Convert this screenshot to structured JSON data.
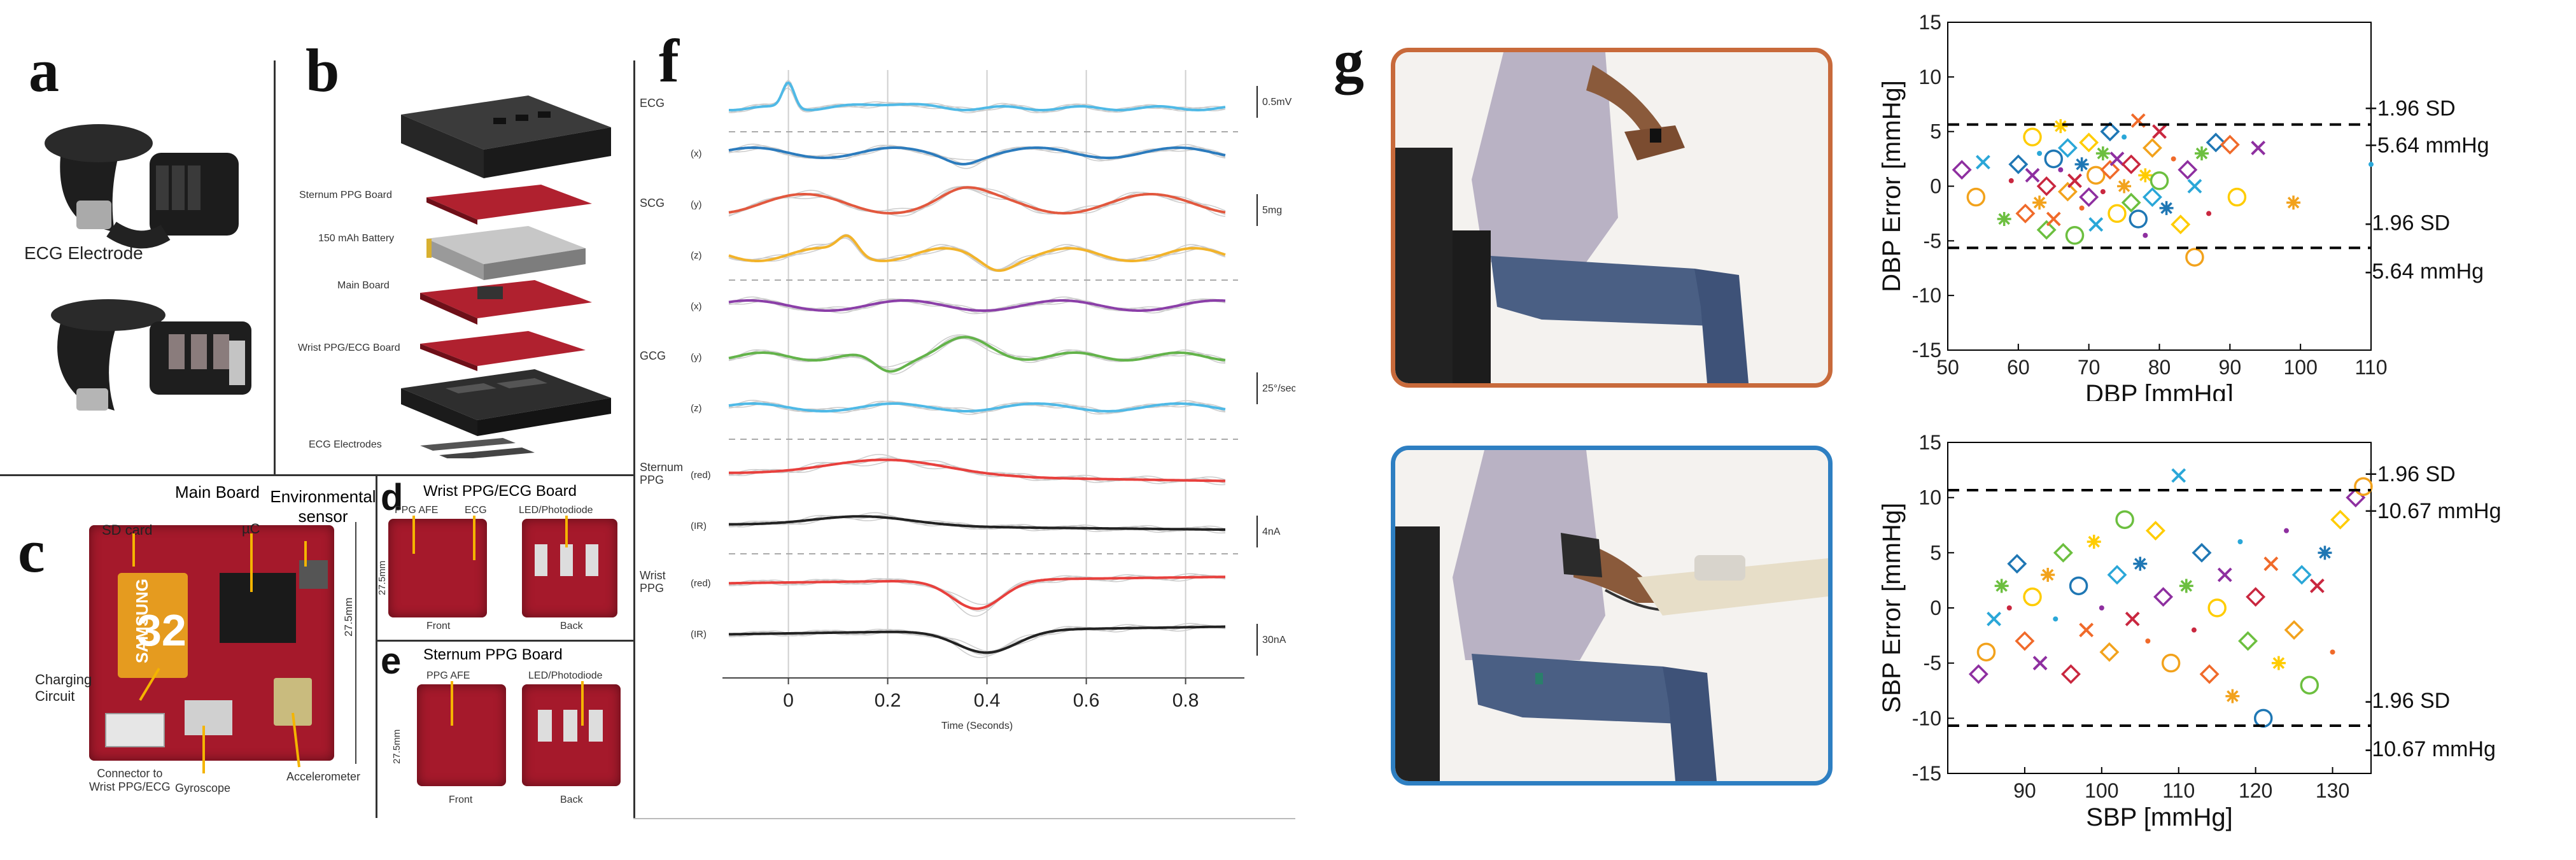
{
  "labels": {
    "a": "a",
    "b": "b",
    "c": "c",
    "d": "d",
    "e": "e",
    "f": "f",
    "g": "g"
  },
  "panel_a": {
    "electrode": "ECG Electrode"
  },
  "panel_b": {
    "parts": [
      "Sternum PPG Board",
      "150 mAh Battery",
      "Main Board",
      "Wrist PPG/ECG Board",
      "ECG Electrodes"
    ]
  },
  "panel_c": {
    "title": "Main Board",
    "env": "Environmental\nsensor",
    "sd": "SD card",
    "uc": "µC",
    "charging": "Charging\nCircuit",
    "connector": "Connector to\nWrist PPG/ECG",
    "gyro": "Gyroscope",
    "accel": "Accelerometer",
    "dim": "27.5mm",
    "sd_brand": "SAMSUNG",
    "sd_size": "32"
  },
  "panel_d": {
    "title": "Wrist PPG/ECG Board",
    "afe": "PPG AFE",
    "ecg": "ECG",
    "led": "LED/Photodiode",
    "front": "Front",
    "back": "Back",
    "dim": "27.5mm"
  },
  "panel_e": {
    "title": "Sternum PPG Board",
    "afe": "PPG AFE",
    "led": "LED/Photodiode",
    "front": "Front",
    "back": "Back",
    "dim": "27.5mm"
  },
  "panel_f": {
    "row_labels": [
      {
        "group": "ECG",
        "axis": ""
      },
      {
        "group": "",
        "axis": "(x)"
      },
      {
        "group": "SCG",
        "axis": "(y)"
      },
      {
        "group": "",
        "axis": "(z)"
      },
      {
        "group": "",
        "axis": "(x)"
      },
      {
        "group": "GCG",
        "axis": "(y)"
      },
      {
        "group": "",
        "axis": "(z)"
      },
      {
        "group": "Sternum\nPPG",
        "axis": "(red)"
      },
      {
        "group": "",
        "axis": "(IR)"
      },
      {
        "group": "Wrist\nPPG",
        "axis": "(red)"
      },
      {
        "group": "",
        "axis": "(IR)"
      }
    ],
    "scale_bars": [
      "0.5mV",
      "5mg",
      "25°/sec",
      "4nA",
      "30nA"
    ],
    "x_ticks": [
      "0",
      "0.2",
      "0.4",
      "0.6",
      "0.8"
    ],
    "xlabel": "Time (Seconds)"
  },
  "chart_data": [
    {
      "type": "scatter",
      "title": "",
      "xlabel": "DBP [mmHg]",
      "ylabel": "DBP Error [mmHg]",
      "xlim": [
        50,
        110
      ],
      "ylim": [
        -15,
        15
      ],
      "x_ticks": [
        "50",
        "60",
        "70",
        "80",
        "90",
        "100",
        "110"
      ],
      "y_ticks": [
        "-15",
        "-10",
        "-5",
        "0",
        "5",
        "10",
        "15"
      ],
      "reference_lines": [
        {
          "value": 5.64,
          "label_top": "+1.96 SD",
          "label_bottom": "+5.64 mmHg"
        },
        {
          "value": -5.64,
          "label_top": "-1.96 SD",
          "label_bottom": "-5.64 mmHg"
        }
      ],
      "grid": false,
      "points": [
        [
          52,
          1.5
        ],
        [
          54,
          -1
        ],
        [
          55,
          2.2
        ],
        [
          58,
          -3
        ],
        [
          59,
          0.5
        ],
        [
          60,
          2
        ],
        [
          61,
          -2.5
        ],
        [
          62,
          4.5
        ],
        [
          62,
          1
        ],
        [
          63,
          -1.5
        ],
        [
          63,
          3
        ],
        [
          64,
          -4
        ],
        [
          64,
          0
        ],
        [
          65,
          2.5
        ],
        [
          65,
          -3
        ],
        [
          66,
          5.5
        ],
        [
          66,
          1.5
        ],
        [
          67,
          -0.5
        ],
        [
          67,
          3.5
        ],
        [
          68,
          -4.5
        ],
        [
          68,
          0.5
        ],
        [
          69,
          2
        ],
        [
          69,
          -2
        ],
        [
          70,
          4
        ],
        [
          70,
          -1
        ],
        [
          71,
          1
        ],
        [
          71,
          -3.5
        ],
        [
          72,
          3
        ],
        [
          72,
          -0.5
        ],
        [
          73,
          5
        ],
        [
          73,
          1.5
        ],
        [
          74,
          -2.5
        ],
        [
          74,
          2.5
        ],
        [
          75,
          0
        ],
        [
          75,
          4.5
        ],
        [
          76,
          -1.5
        ],
        [
          76,
          2
        ],
        [
          77,
          -3
        ],
        [
          77,
          6
        ],
        [
          78,
          1
        ],
        [
          78,
          -4.5
        ],
        [
          79,
          3.5
        ],
        [
          79,
          -1
        ],
        [
          80,
          0.5
        ],
        [
          80,
          5
        ],
        [
          81,
          -2
        ],
        [
          82,
          2.5
        ],
        [
          83,
          -3.5
        ],
        [
          84,
          1.5
        ],
        [
          85,
          -6.5
        ],
        [
          85,
          0
        ],
        [
          86,
          3
        ],
        [
          87,
          -2.5
        ],
        [
          88,
          4
        ],
        [
          90,
          3.8
        ],
        [
          91,
          -1
        ],
        [
          94,
          3.5
        ],
        [
          99,
          -1.5
        ],
        [
          110,
          2
        ]
      ]
    },
    {
      "type": "scatter",
      "title": "",
      "xlabel": "SBP [mmHg]",
      "ylabel": "SBP Error [mmHg]",
      "xlim": [
        80,
        135
      ],
      "ylim": [
        -15,
        15
      ],
      "x_ticks": [
        "90",
        "100",
        "110",
        "120",
        "130"
      ],
      "y_ticks": [
        "-15",
        "-10",
        "-5",
        "0",
        "5",
        "10",
        "15"
      ],
      "reference_lines": [
        {
          "value": 10.67,
          "label_top": "+1.96 SD",
          "label_bottom": "+10.67 mmHg"
        },
        {
          "value": -10.67,
          "label_top": "-1.96 SD",
          "label_bottom": "-10.67 mmHg"
        }
      ],
      "grid": false,
      "points": [
        [
          84,
          -6
        ],
        [
          85,
          -4
        ],
        [
          86,
          -1
        ],
        [
          87,
          2
        ],
        [
          88,
          0
        ],
        [
          89,
          4
        ],
        [
          90,
          -3
        ],
        [
          91,
          1
        ],
        [
          92,
          -5
        ],
        [
          93,
          3
        ],
        [
          94,
          -1
        ],
        [
          95,
          5
        ],
        [
          96,
          -6
        ],
        [
          97,
          2
        ],
        [
          98,
          -2
        ],
        [
          99,
          6
        ],
        [
          100,
          0
        ],
        [
          101,
          -4
        ],
        [
          102,
          3
        ],
        [
          103,
          8
        ],
        [
          104,
          -1
        ],
        [
          105,
          4
        ],
        [
          106,
          -3
        ],
        [
          107,
          7
        ],
        [
          108,
          1
        ],
        [
          109,
          -5
        ],
        [
          110,
          12
        ],
        [
          111,
          2
        ],
        [
          112,
          -2
        ],
        [
          113,
          5
        ],
        [
          114,
          -6
        ],
        [
          115,
          0
        ],
        [
          116,
          3
        ],
        [
          117,
          -8
        ],
        [
          118,
          6
        ],
        [
          119,
          -3
        ],
        [
          120,
          1
        ],
        [
          121,
          -10
        ],
        [
          122,
          4
        ],
        [
          123,
          -5
        ],
        [
          124,
          7
        ],
        [
          125,
          -2
        ],
        [
          126,
          3
        ],
        [
          127,
          -7
        ],
        [
          128,
          2
        ],
        [
          129,
          5
        ],
        [
          130,
          -4
        ],
        [
          131,
          8
        ],
        [
          133,
          10
        ],
        [
          134,
          11
        ]
      ]
    }
  ]
}
